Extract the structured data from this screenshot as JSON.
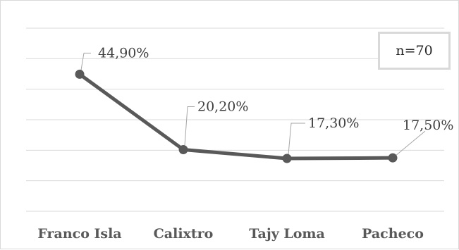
{
  "chart_data": {
    "type": "line",
    "categories": [
      "Franco Isla",
      "Calixtro",
      "Tajy Loma",
      "Pacheco"
    ],
    "values": [
      44.9,
      20.2,
      17.3,
      17.5
    ],
    "data_labels": [
      "44,90%",
      "20,20%",
      "17,30%",
      "17,50%"
    ],
    "annotation": "n=70",
    "ylim": [
      0,
      60
    ],
    "grid": true,
    "legend": "none",
    "series_color": "#595959",
    "grid_color": "#d9d9d9"
  }
}
